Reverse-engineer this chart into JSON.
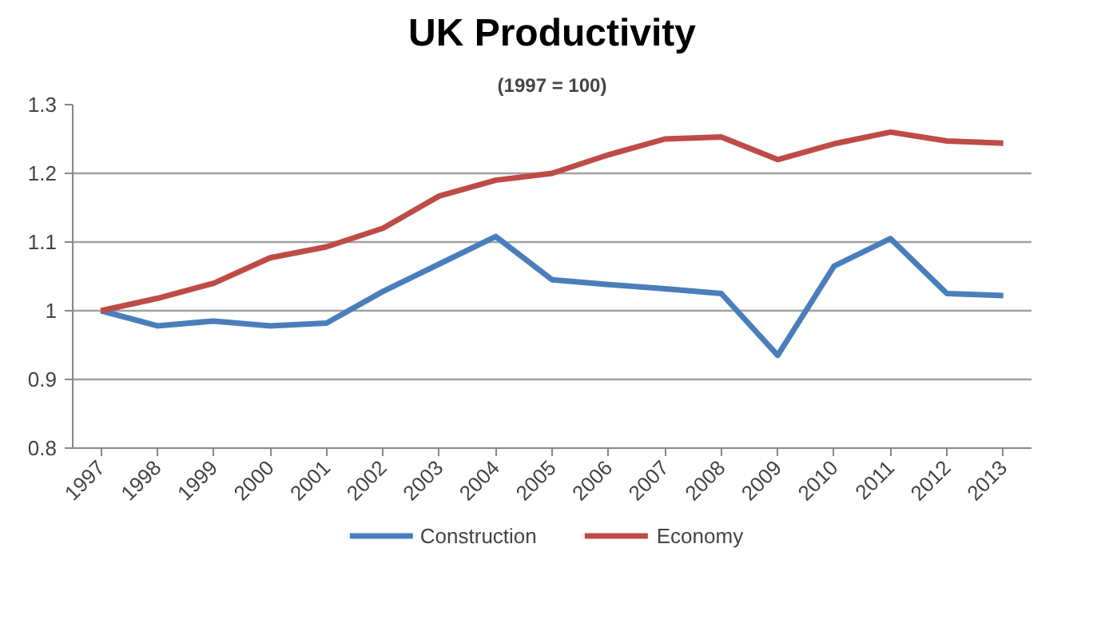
{
  "chart_data": {
    "type": "line",
    "title": "UK Productivity",
    "subtitle": "(1997 = 100)",
    "categories": [
      "1997",
      "1998",
      "1999",
      "2000",
      "2001",
      "2002",
      "2003",
      "2004",
      "2005",
      "2006",
      "2007",
      "2008",
      "2009",
      "2010",
      "2011",
      "2012",
      "2013"
    ],
    "series": [
      {
        "name": "Construction",
        "color": "#4a7ebb",
        "values": [
          1.0,
          0.978,
          0.985,
          0.978,
          0.982,
          1.028,
          1.068,
          1.108,
          1.045,
          1.038,
          1.032,
          1.025,
          0.935,
          1.065,
          1.105,
          1.025,
          1.022
        ]
      },
      {
        "name": "Economy",
        "color": "#be4b48",
        "values": [
          1.0,
          1.018,
          1.04,
          1.077,
          1.093,
          1.12,
          1.167,
          1.19,
          1.2,
          1.227,
          1.25,
          1.253,
          1.22,
          1.243,
          1.26,
          1.247,
          1.244
        ]
      }
    ],
    "ylim": [
      0.8,
      1.3
    ],
    "yticks": [
      0.8,
      0.9,
      1,
      1.1,
      1.2,
      1.3
    ],
    "grid": "y",
    "legend": "bottom",
    "marker": "none",
    "line_style": "solid"
  }
}
